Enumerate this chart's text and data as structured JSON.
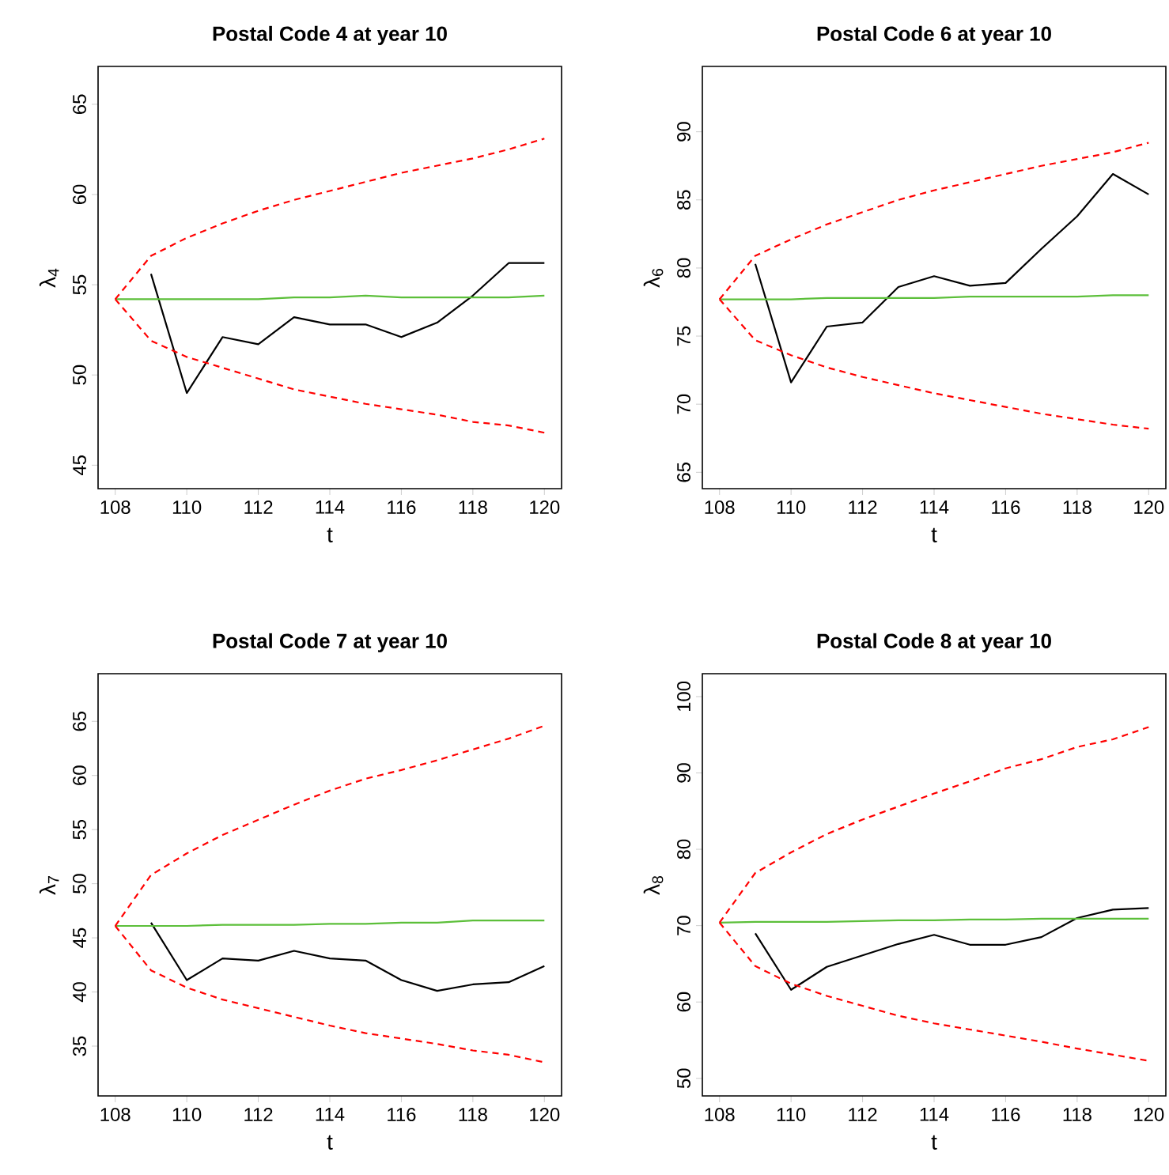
{
  "chart_data": [
    {
      "type": "line",
      "title": "Postal Code 4 at year 10",
      "xlabel": "t",
      "ylabel": "λ$_{4}$",
      "x": [
        108,
        109,
        110,
        111,
        112,
        113,
        114,
        115,
        116,
        117,
        118,
        119,
        120
      ],
      "xlim": [
        107.52,
        120.48
      ],
      "ylim": [
        43.7,
        67.1
      ],
      "xticks": [
        108,
        110,
        112,
        114,
        116,
        118,
        120
      ],
      "yticks": [
        45,
        50,
        55,
        60,
        65
      ],
      "marker": "none",
      "series": [
        {
          "color": "#000000",
          "line_style": "solid",
          "x": [
            109,
            110,
            111,
            112,
            113,
            114,
            115,
            116,
            117,
            118,
            119,
            120
          ],
          "values": [
            55.6,
            49.0,
            52.1,
            51.7,
            53.2,
            52.8,
            52.8,
            52.1,
            52.9,
            54.4,
            56.2,
            56.2
          ]
        },
        {
          "color": "#5cbf3a",
          "line_style": "solid",
          "values": [
            54.2,
            54.2,
            54.2,
            54.2,
            54.2,
            54.3,
            54.3,
            54.4,
            54.3,
            54.3,
            54.3,
            54.3,
            54.4
          ]
        },
        {
          "color": "#ff0000",
          "line_style": "dashed",
          "values": [
            54.2,
            56.6,
            57.6,
            58.4,
            59.1,
            59.7,
            60.2,
            60.7,
            61.2,
            61.6,
            62.0,
            62.5,
            63.1
          ]
        },
        {
          "color": "#ff0000",
          "line_style": "dashed",
          "values": [
            54.2,
            51.9,
            51.0,
            50.4,
            49.8,
            49.2,
            48.8,
            48.4,
            48.1,
            47.8,
            47.4,
            47.2,
            46.8
          ]
        }
      ]
    },
    {
      "type": "line",
      "title": "Postal Code 6 at year 10",
      "xlabel": "t",
      "ylabel": "λ$_{6}$",
      "x": [
        108,
        109,
        110,
        111,
        112,
        113,
        114,
        115,
        116,
        117,
        118,
        119,
        120
      ],
      "xlim": [
        107.52,
        120.48
      ],
      "ylim": [
        63.8,
        94.8
      ],
      "xticks": [
        108,
        110,
        112,
        114,
        116,
        118,
        120
      ],
      "yticks": [
        65,
        70,
        75,
        80,
        85,
        90
      ],
      "marker": "none",
      "series": [
        {
          "color": "#000000",
          "line_style": "solid",
          "x": [
            109,
            110,
            111,
            112,
            113,
            114,
            115,
            116,
            117,
            118,
            119,
            120
          ],
          "values": [
            80.3,
            71.6,
            75.7,
            76.0,
            78.6,
            79.4,
            78.7,
            78.9,
            81.4,
            83.8,
            86.9,
            85.4
          ]
        },
        {
          "color": "#5cbf3a",
          "line_style": "solid",
          "values": [
            77.7,
            77.7,
            77.7,
            77.8,
            77.8,
            77.8,
            77.8,
            77.9,
            77.9,
            77.9,
            77.9,
            78.0,
            78.0
          ]
        },
        {
          "color": "#ff0000",
          "line_style": "dashed",
          "values": [
            77.7,
            80.9,
            82.1,
            83.2,
            84.1,
            85.0,
            85.7,
            86.3,
            86.9,
            87.5,
            88.0,
            88.5,
            89.2
          ]
        },
        {
          "color": "#ff0000",
          "line_style": "dashed",
          "values": [
            77.7,
            74.7,
            73.6,
            72.7,
            72.0,
            71.4,
            70.8,
            70.3,
            69.8,
            69.3,
            68.9,
            68.5,
            68.2
          ]
        }
      ]
    },
    {
      "type": "line",
      "title": "Postal Code 7 at year 10",
      "xlabel": "t",
      "ylabel": "λ$_{7}$",
      "x": [
        108,
        109,
        110,
        111,
        112,
        113,
        114,
        115,
        116,
        117,
        118,
        119,
        120
      ],
      "xlim": [
        107.52,
        120.48
      ],
      "ylim": [
        30.4,
        69.4
      ],
      "xticks": [
        108,
        110,
        112,
        114,
        116,
        118,
        120
      ],
      "yticks": [
        35,
        40,
        45,
        50,
        55,
        60,
        65
      ],
      "marker": "none",
      "series": [
        {
          "color": "#000000",
          "line_style": "solid",
          "x": [
            109,
            110,
            111,
            112,
            113,
            114,
            115,
            116,
            117,
            118,
            119,
            120
          ],
          "values": [
            46.4,
            41.1,
            43.1,
            42.9,
            43.8,
            43.1,
            42.9,
            41.1,
            40.1,
            40.7,
            40.9,
            42.4
          ]
        },
        {
          "color": "#5cbf3a",
          "line_style": "solid",
          "values": [
            46.1,
            46.1,
            46.1,
            46.2,
            46.2,
            46.2,
            46.3,
            46.3,
            46.4,
            46.4,
            46.6,
            46.6,
            46.6
          ]
        },
        {
          "color": "#ff0000",
          "line_style": "dashed",
          "values": [
            46.1,
            50.8,
            52.8,
            54.5,
            55.9,
            57.3,
            58.6,
            59.7,
            60.5,
            61.4,
            62.4,
            63.4,
            64.6
          ]
        },
        {
          "color": "#ff0000",
          "line_style": "dashed",
          "values": [
            46.1,
            42.0,
            40.4,
            39.3,
            38.5,
            37.7,
            36.9,
            36.2,
            35.7,
            35.2,
            34.6,
            34.2,
            33.5
          ]
        }
      ]
    },
    {
      "type": "line",
      "title": "Postal Code 8 at year 10",
      "xlabel": "t",
      "ylabel": "λ$_{8}$",
      "x": [
        108,
        109,
        110,
        111,
        112,
        113,
        114,
        115,
        116,
        117,
        118,
        119,
        120
      ],
      "xlim": [
        107.52,
        120.48
      ],
      "ylim": [
        47.7,
        103.0
      ],
      "xticks": [
        108,
        110,
        112,
        114,
        116,
        118,
        120
      ],
      "yticks": [
        50,
        60,
        70,
        80,
        90,
        100
      ],
      "marker": "none",
      "series": [
        {
          "color": "#000000",
          "line_style": "solid",
          "x": [
            109,
            110,
            111,
            112,
            113,
            114,
            115,
            116,
            117,
            118,
            119,
            120
          ],
          "values": [
            69.0,
            61.6,
            64.6,
            66.1,
            67.6,
            68.8,
            67.5,
            67.5,
            68.5,
            71.0,
            72.1,
            72.3
          ]
        },
        {
          "color": "#5cbf3a",
          "line_style": "solid",
          "values": [
            70.4,
            70.5,
            70.5,
            70.5,
            70.6,
            70.7,
            70.7,
            70.8,
            70.8,
            70.9,
            70.9,
            70.9,
            70.9
          ]
        },
        {
          "color": "#ff0000",
          "line_style": "dashed",
          "values": [
            70.4,
            76.9,
            79.6,
            82.0,
            83.9,
            85.6,
            87.3,
            88.9,
            90.6,
            91.8,
            93.4,
            94.4,
            96.0
          ]
        },
        {
          "color": "#ff0000",
          "line_style": "dashed",
          "values": [
            70.4,
            64.7,
            62.4,
            60.8,
            59.5,
            58.2,
            57.2,
            56.4,
            55.6,
            54.8,
            53.9,
            53.1,
            52.3
          ]
        }
      ]
    }
  ]
}
